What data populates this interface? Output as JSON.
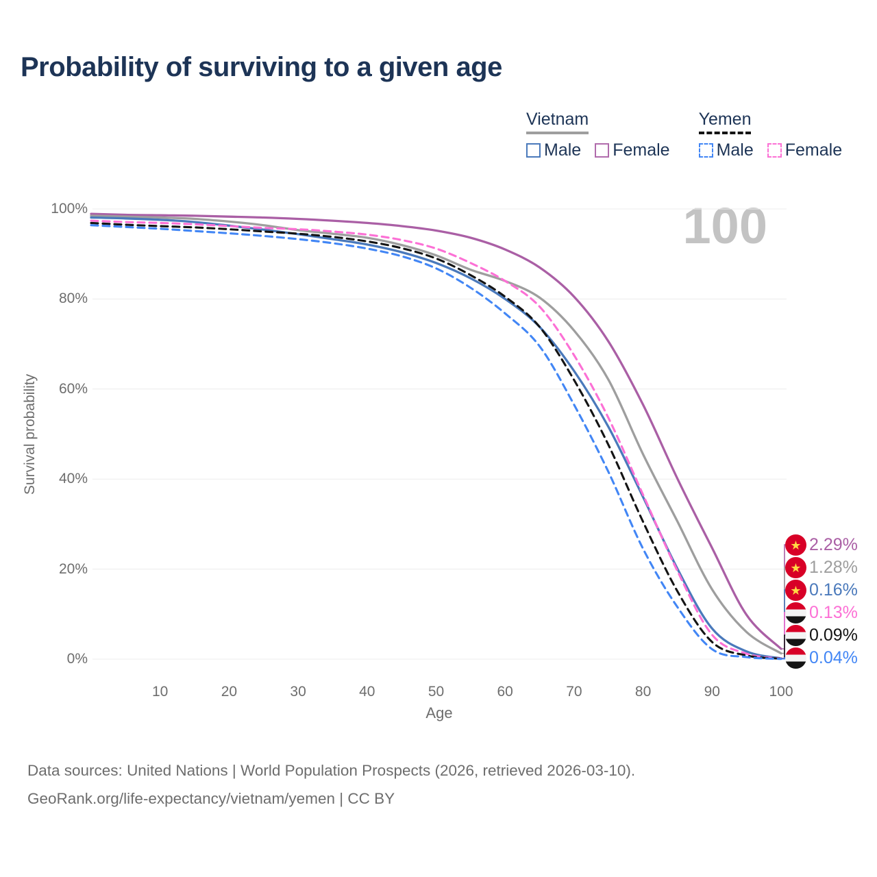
{
  "title": "Probability of surviving to a given age",
  "watermark": "100",
  "legend": {
    "groups": [
      {
        "country": "Vietnam",
        "line_style": "solid",
        "line_color": "#9e9e9e",
        "items": [
          {
            "label": "Male",
            "color": "#4a79bb",
            "dashed": false
          },
          {
            "label": "Female",
            "color": "#b06bac",
            "dashed": false
          }
        ]
      },
      {
        "country": "Yemen",
        "line_style": "dashed",
        "line_color": "#141414",
        "items": [
          {
            "label": "Male",
            "color": "#4286f5",
            "dashed": true
          },
          {
            "label": "Female",
            "color": "#fc70d5",
            "dashed": true
          }
        ]
      }
    ]
  },
  "flags": {
    "vietnam": {
      "background": "#d80027",
      "star_color": "#ffda44",
      "star_glyph": "★"
    },
    "yemen": {
      "stripes": [
        "#d80027",
        "#f4f4f4",
        "#141414"
      ]
    }
  },
  "chart_data": {
    "type": "line",
    "title": "Probability of surviving to a given age",
    "xlabel": "Age",
    "ylabel": "Survival probability",
    "xlim": [
      0,
      100
    ],
    "ylim": [
      0,
      100
    ],
    "x_ticks": [
      10,
      20,
      30,
      40,
      50,
      60,
      70,
      80,
      90,
      100
    ],
    "y_ticks_percent": [
      0,
      20,
      40,
      60,
      80,
      100
    ],
    "grid": "horizontal",
    "legend_position": "top-right",
    "hovered_age": 100,
    "x": [
      0,
      5,
      10,
      15,
      20,
      25,
      30,
      35,
      40,
      45,
      50,
      55,
      60,
      65,
      70,
      75,
      80,
      85,
      90,
      95,
      100
    ],
    "series": [
      {
        "name": "Vietnam Female",
        "country": "Vietnam",
        "sex": "Female",
        "color": "#aa5fa5",
        "dashed": false,
        "flag": "vietnam",
        "end_label": "2.29%",
        "values": [
          98.9,
          98.7,
          98.6,
          98.5,
          98.3,
          98.1,
          97.8,
          97.4,
          96.9,
          96.2,
          95.2,
          93.6,
          91.0,
          87.0,
          80.5,
          70.5,
          56.5,
          40.0,
          24.7,
          9.8,
          2.29
        ]
      },
      {
        "name": "Vietnam Both sexes",
        "country": "Vietnam",
        "sex": "Both",
        "color": "#9e9e9e",
        "dashed": false,
        "flag": "vietnam",
        "end_label": "1.28%",
        "values": [
          98.5,
          98.3,
          98.1,
          97.8,
          97.2,
          96.4,
          95.3,
          94.5,
          93.6,
          92.0,
          89.7,
          86.5,
          84.0,
          80.3,
          73.0,
          62.0,
          45.5,
          30.5,
          15.5,
          6.0,
          1.28
        ]
      },
      {
        "name": "Vietnam Male",
        "country": "Vietnam",
        "sex": "Male",
        "color": "#4a79bb",
        "dashed": false,
        "flag": "vietnam",
        "end_label": "0.16%",
        "values": [
          98.1,
          97.9,
          97.6,
          97.1,
          96.3,
          95.4,
          94.4,
          93.3,
          92.1,
          90.4,
          88.0,
          84.6,
          80.0,
          73.8,
          64.0,
          51.5,
          36.0,
          20.0,
          6.8,
          1.7,
          0.16
        ]
      },
      {
        "name": "Yemen Female",
        "country": "Yemen",
        "sex": "Female",
        "color": "#fc70d5",
        "dashed": true,
        "flag": "yemen",
        "end_label": "0.13%",
        "values": [
          97.4,
          97.1,
          96.9,
          96.6,
          96.2,
          95.8,
          95.5,
          95.0,
          94.3,
          93.1,
          91.2,
          88.0,
          84.0,
          78.3,
          67.5,
          53.5,
          36.5,
          19.5,
          5.4,
          1.2,
          0.13
        ]
      },
      {
        "name": "Yemen Both sexes",
        "country": "Yemen",
        "sex": "Both",
        "color": "#141414",
        "dashed": true,
        "flag": "yemen",
        "end_label": "0.09%",
        "values": [
          96.9,
          96.5,
          96.2,
          95.9,
          95.5,
          95.0,
          94.5,
          93.8,
          92.8,
          91.3,
          89.0,
          85.3,
          80.5,
          73.8,
          62.0,
          47.5,
          30.5,
          15.0,
          3.8,
          0.8,
          0.09
        ]
      },
      {
        "name": "Yemen Male",
        "country": "Yemen",
        "sex": "Male",
        "color": "#4286f5",
        "dashed": true,
        "flag": "yemen",
        "end_label": "0.04%",
        "values": [
          96.4,
          96.0,
          95.6,
          95.1,
          94.6,
          94.0,
          93.3,
          92.4,
          91.2,
          89.5,
          86.8,
          82.5,
          76.8,
          69.5,
          56.5,
          41.5,
          24.5,
          11.5,
          2.2,
          0.45,
          0.04
        ]
      }
    ]
  },
  "footer": {
    "line1": "Data sources: United Nations | World Population Prospects (2026, retrieved 2026-03-10).",
    "line2": "GeoRank.org/life-expectancy/vietnam/yemen | CC BY"
  }
}
